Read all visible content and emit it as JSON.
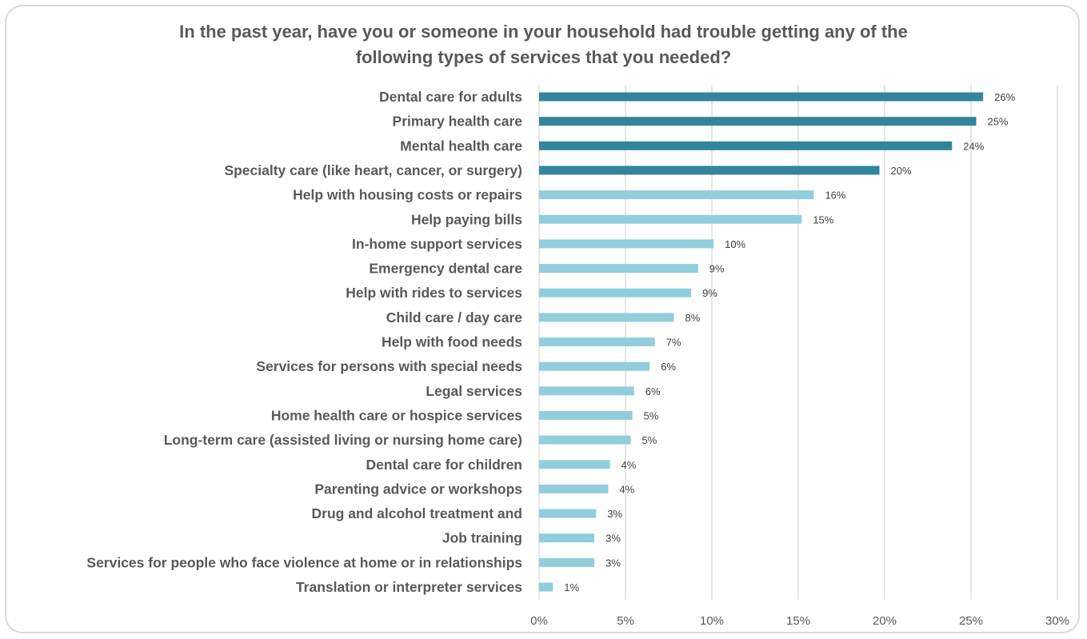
{
  "chart_data": {
    "type": "bar",
    "orientation": "horizontal",
    "title_lines": [
      "In the past year, have you or someone in your household had trouble getting any of the",
      "following types of services that you needed?"
    ],
    "categories": [
      "Dental care for adults",
      "Primary health care",
      "Mental health care",
      "Specialty care (like heart, cancer, or surgery)",
      "Help with housing costs or repairs",
      "Help paying bills",
      "In-home support services",
      "Emergency dental care",
      "Help with rides to services",
      "Child care / day care",
      "Help with food needs",
      "Services for persons with special needs",
      "Legal services",
      "Home health care or hospice services",
      "Long-term care (assisted living or nursing home care)",
      "Dental care for children",
      "Parenting advice or workshops",
      "Drug and alcohol treatment and",
      "Job training",
      "Services for people who face violence at home or in relationships",
      "Translation or interpreter services"
    ],
    "values": [
      25.7,
      25.3,
      23.9,
      19.7,
      15.9,
      15.2,
      10.1,
      9.2,
      8.8,
      7.8,
      6.7,
      6.4,
      5.5,
      5.4,
      5.3,
      4.1,
      4.0,
      3.3,
      3.2,
      3.2,
      0.8
    ],
    "value_labels": [
      "26%",
      "25%",
      "24%",
      "20%",
      "16%",
      "15%",
      "10%",
      "9%",
      "9%",
      "8%",
      "7%",
      "6%",
      "6%",
      "5%",
      "5%",
      "4%",
      "4%",
      "3%",
      "3%",
      "3%",
      "1%"
    ],
    "highlight_count": 4,
    "colors": {
      "highlight": "#31859c",
      "normal": "#92cddc",
      "grid": "#d9d9d9"
    },
    "xlim": [
      0,
      30
    ],
    "xticks": [
      0,
      5,
      10,
      15,
      20,
      25,
      30
    ],
    "xtick_labels": [
      "0%",
      "5%",
      "10%",
      "15%",
      "20%",
      "25%",
      "30%"
    ],
    "grid": true,
    "legend": "none"
  }
}
